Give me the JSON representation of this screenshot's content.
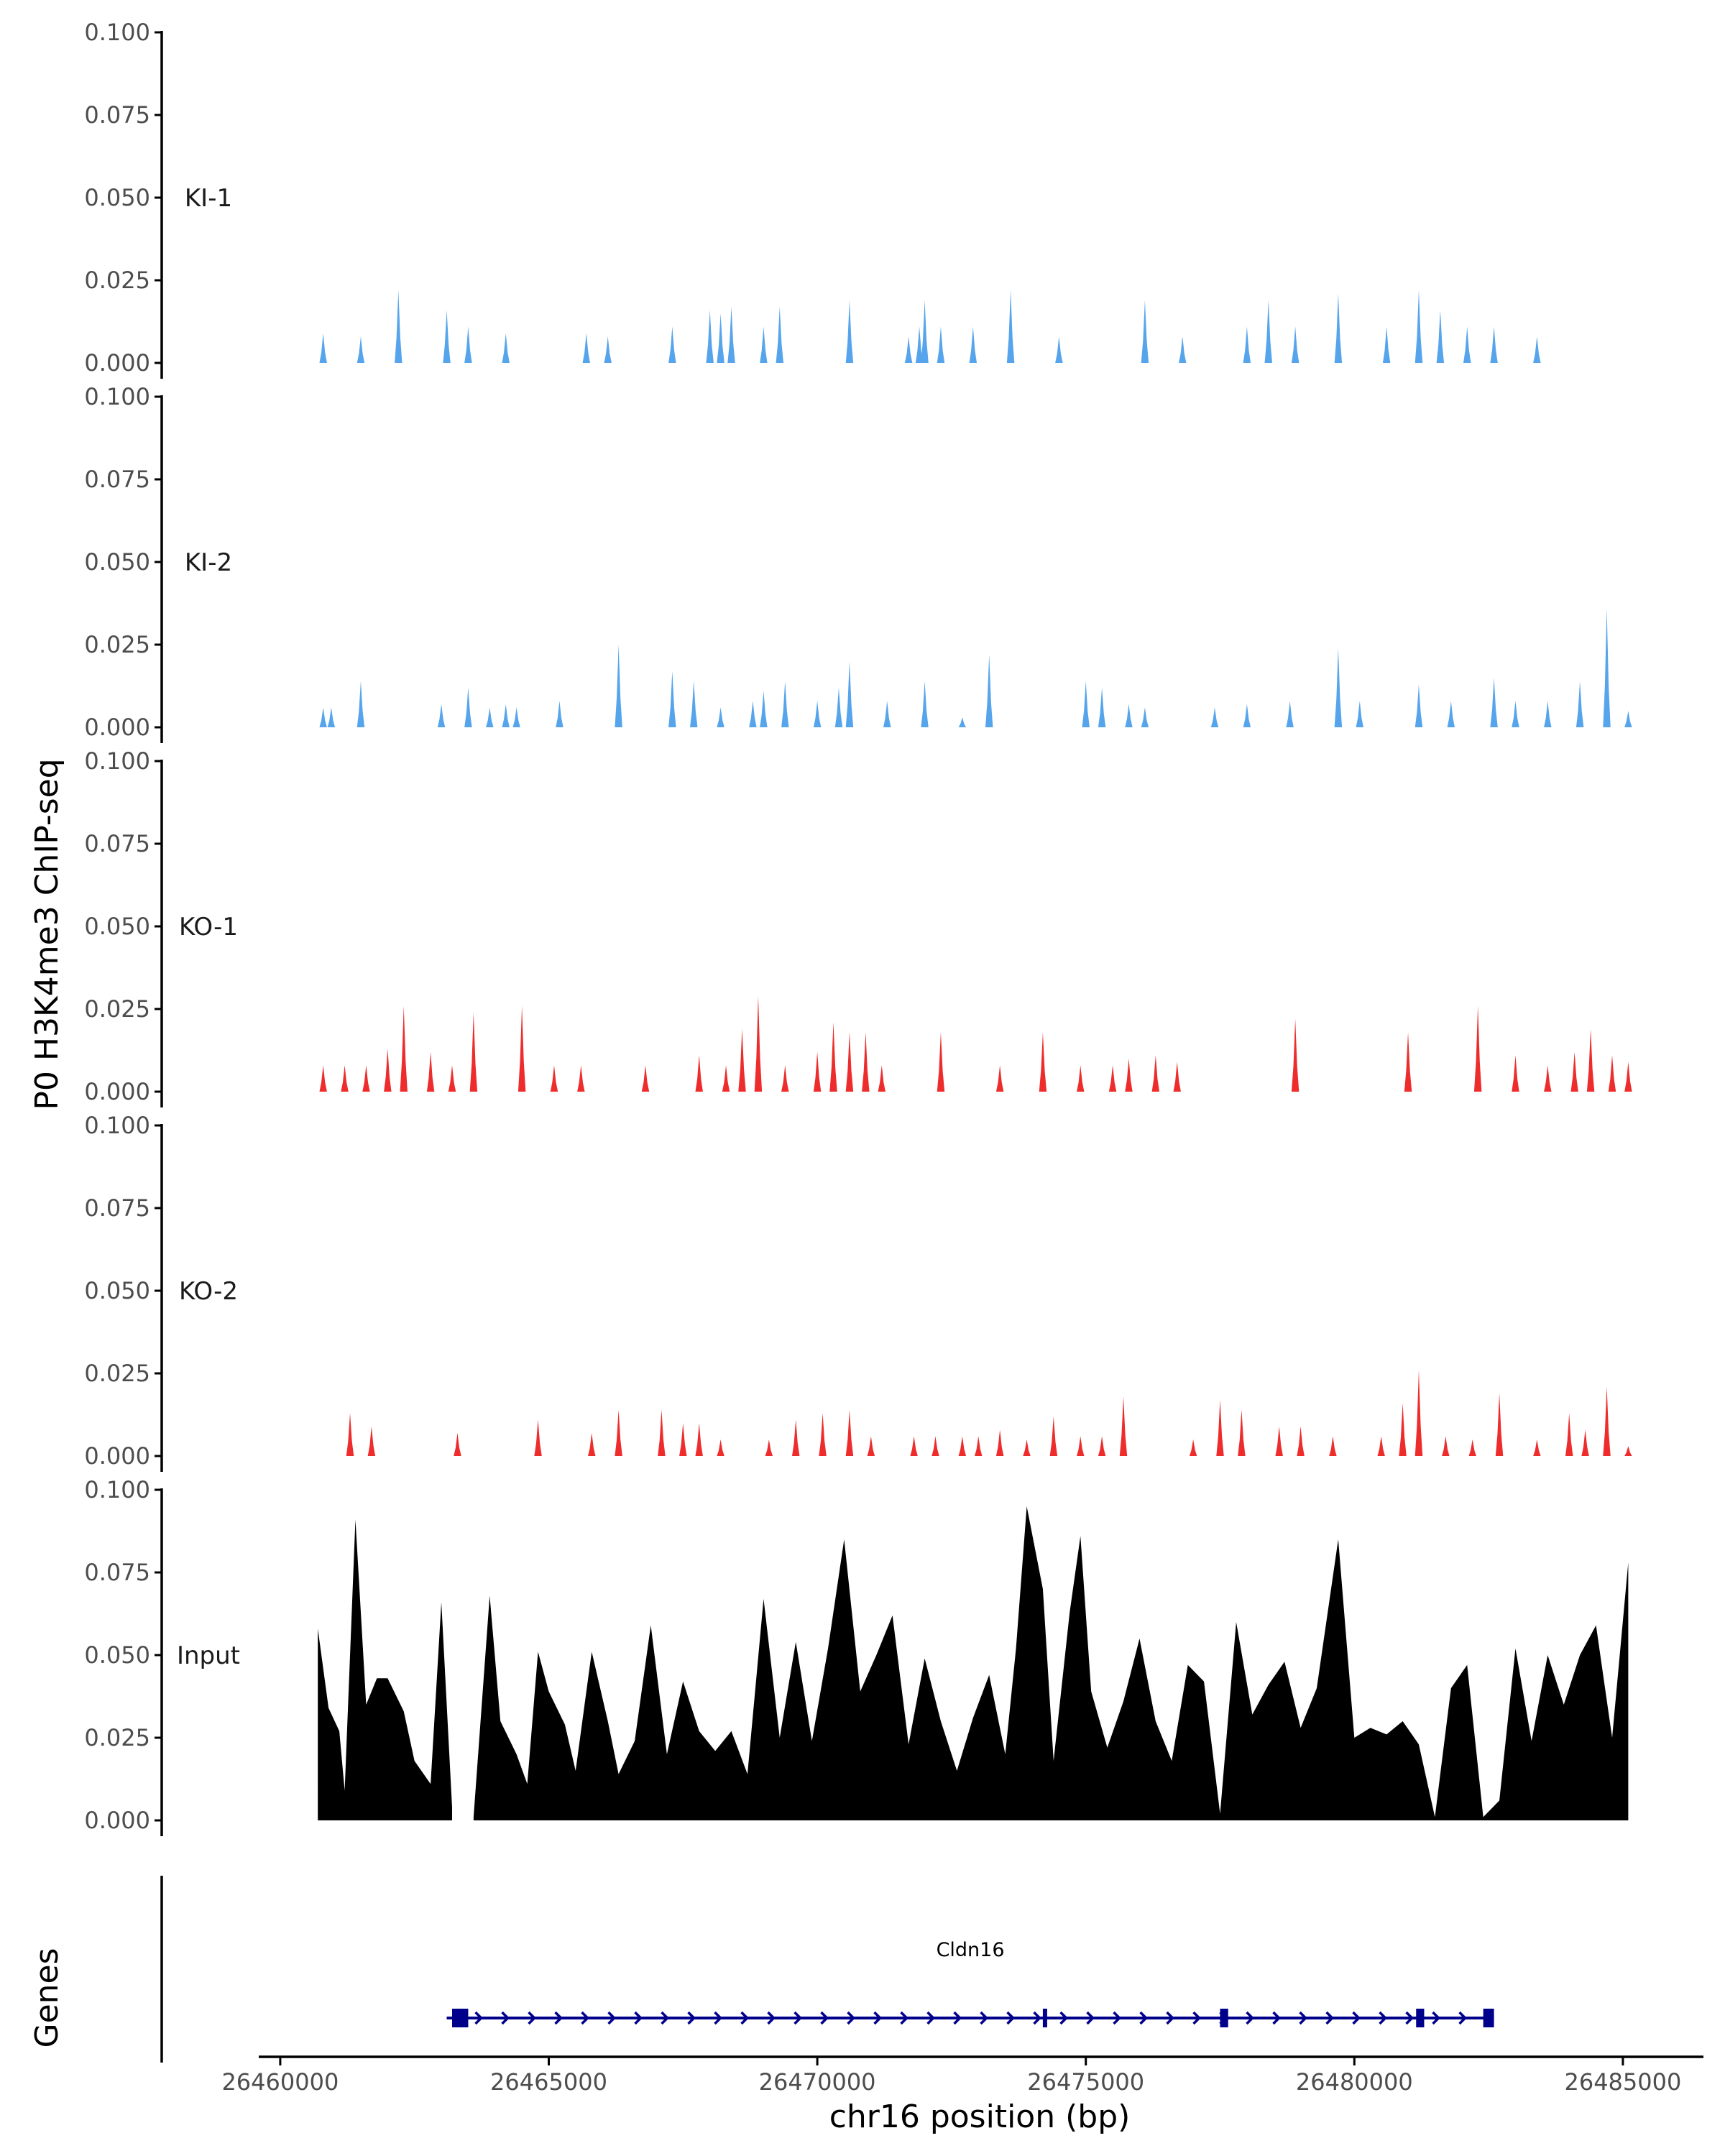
{
  "chart_data": {
    "type": "area",
    "ylabel": "P0 H3K4me3 ChIP-seq",
    "xlabel": "chr16 position (bp)",
    "genes_label": "Genes",
    "ylim": [
      0,
      0.1
    ],
    "yticks": [
      "0.000",
      "0.025",
      "0.050",
      "0.075",
      "0.100"
    ],
    "xlim": [
      26459600,
      26486500
    ],
    "xticks": [
      {
        "value": 26460000,
        "label": "26460000"
      },
      {
        "value": 26465000,
        "label": "26465000"
      },
      {
        "value": 26470000,
        "label": "26470000"
      },
      {
        "value": 26475000,
        "label": "26475000"
      },
      {
        "value": 26480000,
        "label": "26480000"
      },
      {
        "value": 26485000,
        "label": "26485000"
      }
    ],
    "tracks": [
      {
        "name": "KI-1",
        "color": "#56A5EC",
        "peaks": [
          [
            26460800,
            0.009
          ],
          [
            26461500,
            0.008
          ],
          [
            26462200,
            0.022
          ],
          [
            26463100,
            0.016
          ],
          [
            26463500,
            0.011
          ],
          [
            26464200,
            0.009
          ],
          [
            26465700,
            0.009
          ],
          [
            26466100,
            0.008
          ],
          [
            26467300,
            0.011
          ],
          [
            26468000,
            0.016
          ],
          [
            26468200,
            0.015
          ],
          [
            26468400,
            0.017
          ],
          [
            26469000,
            0.011
          ],
          [
            26469300,
            0.017
          ],
          [
            26470600,
            0.019
          ],
          [
            26471700,
            0.008
          ],
          [
            26471900,
            0.011
          ],
          [
            26472000,
            0.019
          ],
          [
            26472300,
            0.011
          ],
          [
            26472900,
            0.011
          ],
          [
            26473600,
            0.022
          ],
          [
            26474500,
            0.008
          ],
          [
            26476100,
            0.019
          ],
          [
            26476800,
            0.008
          ],
          [
            26478000,
            0.011
          ],
          [
            26478400,
            0.019
          ],
          [
            26478900,
            0.011
          ],
          [
            26479700,
            0.021
          ],
          [
            26480600,
            0.011
          ],
          [
            26481200,
            0.022
          ],
          [
            26481600,
            0.016
          ],
          [
            26482100,
            0.011
          ],
          [
            26482600,
            0.011
          ],
          [
            26483400,
            0.008
          ]
        ],
        "x_start": 26460600,
        "x_end": 26483600
      },
      {
        "name": "KI-2",
        "color": "#56A5EC",
        "peaks": [
          [
            26460800,
            0.006
          ],
          [
            26460950,
            0.006
          ],
          [
            26461500,
            0.014
          ],
          [
            26463000,
            0.007
          ],
          [
            26463500,
            0.012
          ],
          [
            26463900,
            0.006
          ],
          [
            26464200,
            0.007
          ],
          [
            26464400,
            0.006
          ],
          [
            26465200,
            0.008
          ],
          [
            26466300,
            0.025
          ],
          [
            26467300,
            0.017
          ],
          [
            26467700,
            0.014
          ],
          [
            26468200,
            0.006
          ],
          [
            26468800,
            0.008
          ],
          [
            26469000,
            0.011
          ],
          [
            26469400,
            0.014
          ],
          [
            26470000,
            0.008
          ],
          [
            26470400,
            0.012
          ],
          [
            26470600,
            0.02
          ],
          [
            26471300,
            0.008
          ],
          [
            26472000,
            0.014
          ],
          [
            26472700,
            0.003
          ],
          [
            26473200,
            0.022
          ],
          [
            26475000,
            0.014
          ],
          [
            26475300,
            0.012
          ],
          [
            26475800,
            0.007
          ],
          [
            26476100,
            0.006
          ],
          [
            26477400,
            0.006
          ],
          [
            26478000,
            0.007
          ],
          [
            26478800,
            0.008
          ],
          [
            26479700,
            0.024
          ],
          [
            26480100,
            0.008
          ],
          [
            26481200,
            0.013
          ],
          [
            26481800,
            0.008
          ],
          [
            26482600,
            0.015
          ],
          [
            26483000,
            0.008
          ],
          [
            26483600,
            0.008
          ],
          [
            26484200,
            0.014
          ],
          [
            26484700,
            0.036
          ],
          [
            26485100,
            0.005
          ]
        ],
        "x_start": 26460700,
        "x_end": 26485200
      },
      {
        "name": "KO-1",
        "color": "#EE2C2C",
        "peaks": [
          [
            26460800,
            0.008
          ],
          [
            26461200,
            0.008
          ],
          [
            26461600,
            0.008
          ],
          [
            26462000,
            0.013
          ],
          [
            26462300,
            0.026
          ],
          [
            26462800,
            0.012
          ],
          [
            26463200,
            0.008
          ],
          [
            26463600,
            0.024
          ],
          [
            26464500,
            0.026
          ],
          [
            26465100,
            0.008
          ],
          [
            26465600,
            0.008
          ],
          [
            26466800,
            0.008
          ],
          [
            26467800,
            0.011
          ],
          [
            26468300,
            0.008
          ],
          [
            26468600,
            0.019
          ],
          [
            26468900,
            0.029
          ],
          [
            26469400,
            0.008
          ],
          [
            26470000,
            0.012
          ],
          [
            26470300,
            0.021
          ],
          [
            26470600,
            0.018
          ],
          [
            26470900,
            0.018
          ],
          [
            26471200,
            0.008
          ],
          [
            26472300,
            0.018
          ],
          [
            26473400,
            0.008
          ],
          [
            26474200,
            0.018
          ],
          [
            26474900,
            0.008
          ],
          [
            26475500,
            0.008
          ],
          [
            26475800,
            0.01
          ],
          [
            26476300,
            0.011
          ],
          [
            26476700,
            0.009
          ],
          [
            26478900,
            0.022
          ],
          [
            26481000,
            0.018
          ],
          [
            26482300,
            0.026
          ],
          [
            26483000,
            0.011
          ],
          [
            26483600,
            0.008
          ],
          [
            26484100,
            0.012
          ],
          [
            26484400,
            0.019
          ],
          [
            26484800,
            0.011
          ],
          [
            26485100,
            0.009
          ]
        ],
        "x_start": 26460600,
        "x_end": 26485200
      },
      {
        "name": "KO-2",
        "color": "#EE2C2C",
        "peaks": [
          [
            26461300,
            0.013
          ],
          [
            26461700,
            0.009
          ],
          [
            26463300,
            0.007
          ],
          [
            26464800,
            0.011
          ],
          [
            26465800,
            0.007
          ],
          [
            26466300,
            0.014
          ],
          [
            26467100,
            0.014
          ],
          [
            26467500,
            0.01
          ],
          [
            26467800,
            0.01
          ],
          [
            26468200,
            0.005
          ],
          [
            26469100,
            0.005
          ],
          [
            26469600,
            0.011
          ],
          [
            26470100,
            0.013
          ],
          [
            26470600,
            0.014
          ],
          [
            26471000,
            0.006
          ],
          [
            26471800,
            0.006
          ],
          [
            26472200,
            0.006
          ],
          [
            26472700,
            0.006
          ],
          [
            26473000,
            0.006
          ],
          [
            26473400,
            0.008
          ],
          [
            26473900,
            0.005
          ],
          [
            26474400,
            0.012
          ],
          [
            26474900,
            0.006
          ],
          [
            26475300,
            0.006
          ],
          [
            26475700,
            0.018
          ],
          [
            26477000,
            0.005
          ],
          [
            26477500,
            0.017
          ],
          [
            26477900,
            0.014
          ],
          [
            26478600,
            0.009
          ],
          [
            26479000,
            0.009
          ],
          [
            26479600,
            0.006
          ],
          [
            26480500,
            0.006
          ],
          [
            26480900,
            0.016
          ],
          [
            26481200,
            0.026
          ],
          [
            26481700,
            0.006
          ],
          [
            26482200,
            0.005
          ],
          [
            26482700,
            0.019
          ],
          [
            26483400,
            0.005
          ],
          [
            26484000,
            0.013
          ],
          [
            26484300,
            0.008
          ],
          [
            26484700,
            0.021
          ],
          [
            26485100,
            0.003
          ]
        ],
        "x_start": 26461000,
        "x_end": 26485200
      },
      {
        "name": "Input",
        "color": "#000000",
        "breakpoints": [
          [
            26460700,
            0.058
          ],
          [
            26460900,
            0.034
          ],
          [
            26461100,
            0.027
          ],
          [
            26461200,
            0.009
          ],
          [
            26461400,
            0.091
          ],
          [
            26461600,
            0.035
          ],
          [
            26461800,
            0.043
          ],
          [
            26462000,
            0.043
          ],
          [
            26462300,
            0.033
          ],
          [
            26462500,
            0.018
          ],
          [
            26462800,
            0.011
          ],
          [
            26463000,
            0.066
          ],
          [
            26463200,
            0.004
          ],
          [
            26463400,
            null
          ],
          [
            26463600,
            0.001
          ],
          [
            26463900,
            0.068
          ],
          [
            26464100,
            0.03
          ],
          [
            26464400,
            0.02
          ],
          [
            26464600,
            0.011
          ],
          [
            26464800,
            0.051
          ],
          [
            26465000,
            0.039
          ],
          [
            26465300,
            0.029
          ],
          [
            26465500,
            0.015
          ],
          [
            26465800,
            0.051
          ],
          [
            26466100,
            0.03
          ],
          [
            26466300,
            0.014
          ],
          [
            26466600,
            0.024
          ],
          [
            26466900,
            0.059
          ],
          [
            26467200,
            0.02
          ],
          [
            26467500,
            0.042
          ],
          [
            26467800,
            0.027
          ],
          [
            26468100,
            0.021
          ],
          [
            26468400,
            0.027
          ],
          [
            26468700,
            0.014
          ],
          [
            26469000,
            0.067
          ],
          [
            26469300,
            0.025
          ],
          [
            26469600,
            0.054
          ],
          [
            26469900,
            0.024
          ],
          [
            26470200,
            0.052
          ],
          [
            26470500,
            0.085
          ],
          [
            26470800,
            0.039
          ],
          [
            26471100,
            0.05
          ],
          [
            26471400,
            0.062
          ],
          [
            26471700,
            0.023
          ],
          [
            26472000,
            0.049
          ],
          [
            26472300,
            0.03
          ],
          [
            26472600,
            0.015
          ],
          [
            26472900,
            0.031
          ],
          [
            26473200,
            0.044
          ],
          [
            26473500,
            0.02
          ],
          [
            26473700,
            0.052
          ],
          [
            26473900,
            0.095
          ],
          [
            26474200,
            0.07
          ],
          [
            26474400,
            0.018
          ],
          [
            26474700,
            0.063
          ],
          [
            26474900,
            0.086
          ],
          [
            26475100,
            0.039
          ],
          [
            26475400,
            0.022
          ],
          [
            26475700,
            0.036
          ],
          [
            26476000,
            0.055
          ],
          [
            26476300,
            0.03
          ],
          [
            26476600,
            0.018
          ],
          [
            26476900,
            0.047
          ],
          [
            26477200,
            0.042
          ],
          [
            26477500,
            0.002
          ],
          [
            26477800,
            0.06
          ],
          [
            26478100,
            0.032
          ],
          [
            26478400,
            0.041
          ],
          [
            26478700,
            0.048
          ],
          [
            26479000,
            0.028
          ],
          [
            26479300,
            0.04
          ],
          [
            26479700,
            0.085
          ],
          [
            26480000,
            0.025
          ],
          [
            26480300,
            0.028
          ],
          [
            26480600,
            0.026
          ],
          [
            26480900,
            0.03
          ],
          [
            26481200,
            0.023
          ],
          [
            26481500,
            0.001
          ],
          [
            26481800,
            0.04
          ],
          [
            26482100,
            0.047
          ],
          [
            26482400,
            0.001
          ],
          [
            26482700,
            0.006
          ],
          [
            26483000,
            0.052
          ],
          [
            26483300,
            0.024
          ],
          [
            26483600,
            0.05
          ],
          [
            26483900,
            0.035
          ],
          [
            26484200,
            0.05
          ],
          [
            26484500,
            0.059
          ],
          [
            26484800,
            0.025
          ],
          [
            26485100,
            0.078
          ]
        ],
        "x_start": 26460700,
        "x_end": 26485200
      }
    ],
    "gene": {
      "name": "Cldn16",
      "start": 26463100,
      "end": 26482600,
      "exons": [
        [
          26463200,
          26463500
        ],
        [
          26474200,
          26474280
        ],
        [
          26477500,
          26477650
        ],
        [
          26481150,
          26481300
        ],
        [
          26482400,
          26482600
        ]
      ],
      "strand": "+",
      "color": "#00008B"
    }
  }
}
